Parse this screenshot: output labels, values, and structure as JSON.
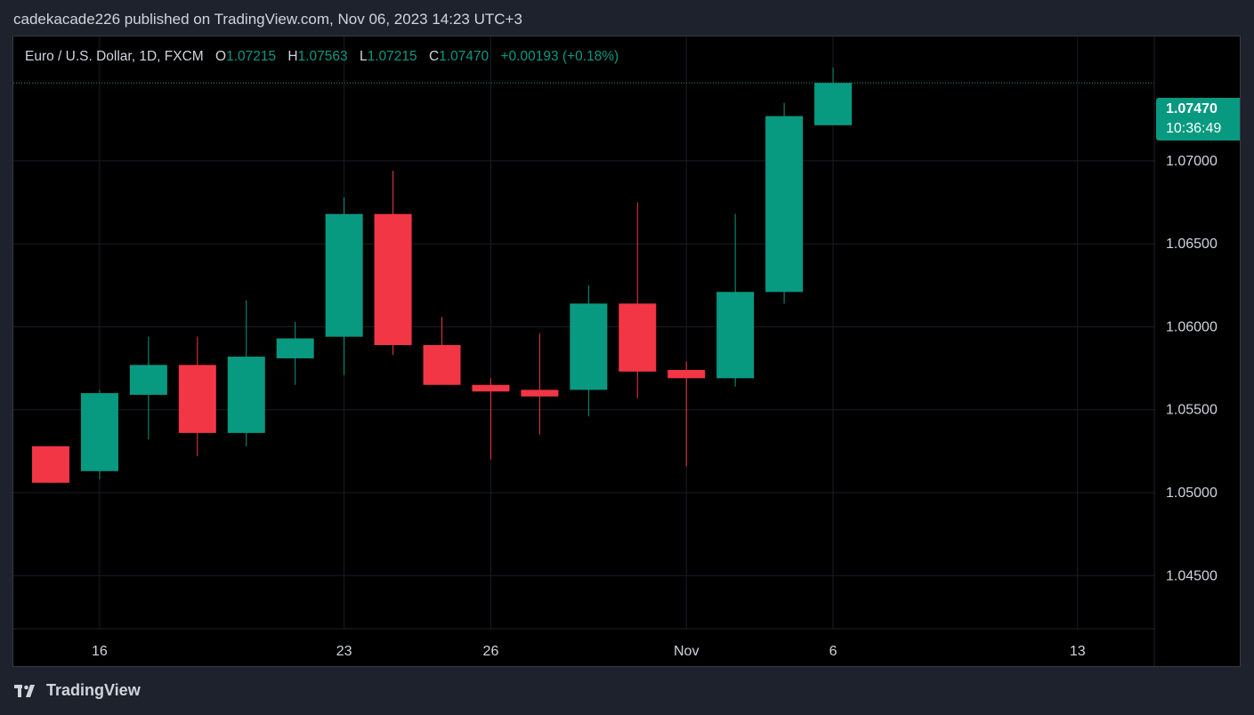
{
  "header": {
    "published_text": "cadekacade226 published on TradingView.com, Nov 06, 2023 14:23 UTC+3"
  },
  "legend": {
    "symbol": "Euro / U.S. Dollar, 1D, FXCM",
    "o_label": "O",
    "o_value": "1.07215",
    "h_label": "H",
    "h_value": "1.07563",
    "l_label": "L",
    "l_value": "1.07215",
    "c_label": "C",
    "c_value": "1.07470",
    "change": "+0.00193 (+0.18%)"
  },
  "price_tag": {
    "price": "1.07470",
    "countdown": "10:36:49"
  },
  "footer": {
    "brand": "TradingView"
  },
  "colors": {
    "up": "#089981",
    "down": "#f23645",
    "background": "#000000",
    "grid": "#1a1d24"
  },
  "chart_data": {
    "type": "candlestick",
    "y_ticks": [
      "1.04500",
      "1.05000",
      "1.05500",
      "1.06000",
      "1.06500",
      "1.07000"
    ],
    "y_tick_values": [
      1.045,
      1.05,
      1.055,
      1.06,
      1.065,
      1.07
    ],
    "ylim": [
      1.0418,
      1.0775
    ],
    "x_ticks": [
      {
        "label": "16",
        "index": 1
      },
      {
        "label": "23",
        "index": 6
      },
      {
        "label": "26",
        "index": 9
      },
      {
        "label": "Nov",
        "index": 13
      },
      {
        "label": "6",
        "index": 16
      },
      {
        "label": "13",
        "index": 21
      }
    ],
    "current_price": 1.0747,
    "candles": [
      {
        "o": 1.0528,
        "h": 1.0528,
        "l": 1.0506,
        "c": 1.0506
      },
      {
        "o": 1.0513,
        "h": 1.0562,
        "l": 1.0508,
        "c": 1.056
      },
      {
        "o": 1.0559,
        "h": 1.0594,
        "l": 1.0532,
        "c": 1.0577
      },
      {
        "o": 1.0577,
        "h": 1.0594,
        "l": 1.0522,
        "c": 1.0536
      },
      {
        "o": 1.0536,
        "h": 1.0616,
        "l": 1.0528,
        "c": 1.0582
      },
      {
        "o": 1.0581,
        "h": 1.0603,
        "l": 1.0565,
        "c": 1.0593
      },
      {
        "o": 1.0594,
        "h": 1.0678,
        "l": 1.0571,
        "c": 1.0668
      },
      {
        "o": 1.0668,
        "h": 1.0694,
        "l": 1.0583,
        "c": 1.0589
      },
      {
        "o": 1.0589,
        "h": 1.0606,
        "l": 1.0565,
        "c": 1.0565
      },
      {
        "o": 1.0565,
        "h": 1.0569,
        "l": 1.052,
        "c": 1.0561
      },
      {
        "o": 1.0562,
        "h": 1.0596,
        "l": 1.0535,
        "c": 1.0558
      },
      {
        "o": 1.0562,
        "h": 1.0625,
        "l": 1.0546,
        "c": 1.0614
      },
      {
        "o": 1.0614,
        "h": 1.0675,
        "l": 1.0557,
        "c": 1.0573
      },
      {
        "o": 1.0574,
        "h": 1.0579,
        "l": 1.0516,
        "c": 1.0569
      },
      {
        "o": 1.0569,
        "h": 1.0668,
        "l": 1.0564,
        "c": 1.0621
      },
      {
        "o": 1.0621,
        "h": 1.0735,
        "l": 1.0614,
        "c": 1.0727
      },
      {
        "o": 1.07215,
        "h": 1.07563,
        "l": 1.07215,
        "c": 1.0747
      }
    ]
  }
}
